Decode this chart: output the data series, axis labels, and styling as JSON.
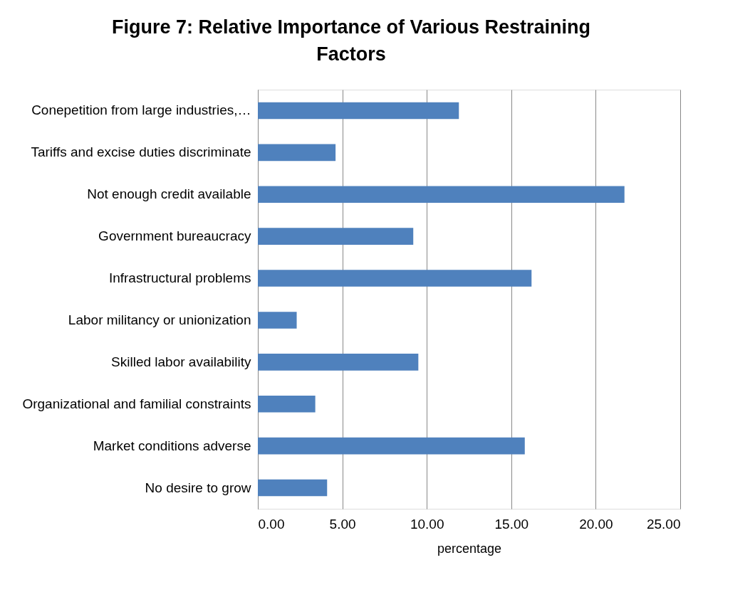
{
  "chart_data": {
    "type": "bar",
    "orientation": "horizontal",
    "title": "Figure 7: Relative Importance of Various Restraining Factors",
    "xlabel": "percentage",
    "categories": [
      "Conepetition from large industries,…",
      "Tariffs and excise duties discriminate",
      "Not enough credit available",
      "Government bureaucracy",
      "Infrastructural problems",
      "Labor militancy or unionization",
      "Skilled labor availability",
      "Organizational and familial constraints",
      "Market conditions adverse",
      "No desire to grow"
    ],
    "values": [
      11.9,
      4.6,
      21.7,
      9.2,
      16.2,
      2.3,
      9.5,
      3.4,
      15.8,
      4.1
    ],
    "color": "#4f81bd",
    "xlim": [
      0,
      25
    ],
    "xticks": [
      {
        "value": 0,
        "label": "0.00"
      },
      {
        "value": 5,
        "label": "5.00"
      },
      {
        "value": 10,
        "label": "10.00"
      },
      {
        "value": 15,
        "label": "15.00"
      },
      {
        "value": 20,
        "label": "20.00"
      },
      {
        "value": 25,
        "label": "25.00"
      }
    ],
    "grid": "x"
  }
}
